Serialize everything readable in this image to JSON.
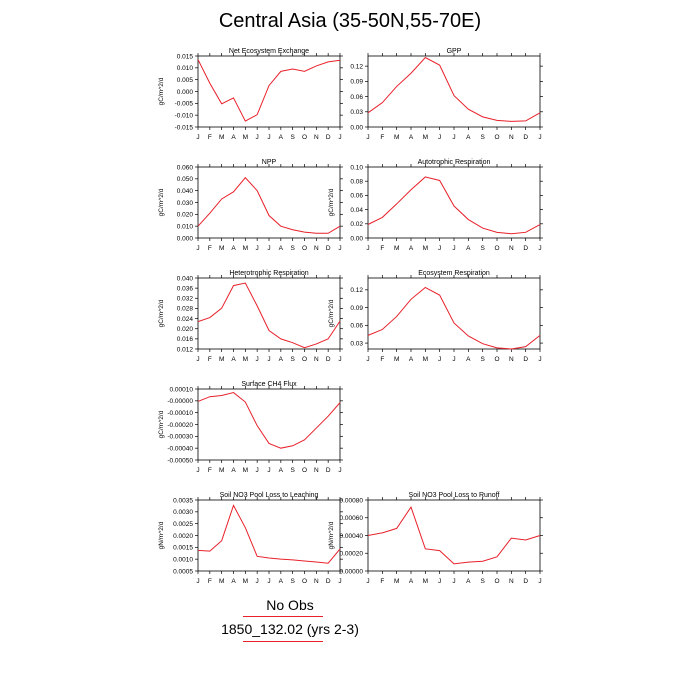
{
  "title": "Central Asia (35-50N,55-70E)",
  "month_labels": [
    "J",
    "F",
    "M",
    "A",
    "M",
    "J",
    "J",
    "A",
    "S",
    "O",
    "N",
    "D",
    "J"
  ],
  "legend": {
    "label1": "No Obs",
    "label2": "1850_132.02 (yrs 2-3)"
  },
  "colors": {
    "series": "#e8202a",
    "axis": "#000000"
  },
  "chart_data": [
    {
      "type": "line",
      "title": "Net Ecosystem Exchange",
      "ylabel": "gC/m^2/d",
      "ylim": [
        -0.015,
        0.015
      ],
      "yticks": [
        -0.015,
        -0.01,
        -0.005,
        0.0,
        0.005,
        0.01,
        0.015
      ],
      "ytick_labels": [
        "-0.015",
        "-0.010",
        "-0.005",
        "0.000",
        "0.005",
        "0.010",
        "0.015"
      ],
      "values": [
        0.0135,
        0.0035,
        -0.0052,
        -0.0027,
        -0.0125,
        -0.0098,
        0.0025,
        0.0085,
        0.0095,
        0.0085,
        0.0108,
        0.0125,
        0.0132
      ]
    },
    {
      "type": "line",
      "title": "GPP",
      "ylabel": "",
      "ylim": [
        0.0,
        0.14
      ],
      "yticks": [
        0.0,
        0.03,
        0.06,
        0.09,
        0.12
      ],
      "ytick_labels": [
        "0.00",
        "0.03",
        "0.06",
        "0.09",
        "0.12"
      ],
      "values": [
        0.028,
        0.048,
        0.08,
        0.106,
        0.137,
        0.122,
        0.062,
        0.035,
        0.02,
        0.013,
        0.011,
        0.012,
        0.028
      ]
    },
    {
      "type": "line",
      "title": "NPP",
      "ylabel": "gC/m^2/d",
      "ylim": [
        0.0,
        0.06
      ],
      "yticks": [
        0.0,
        0.01,
        0.02,
        0.03,
        0.04,
        0.05,
        0.06
      ],
      "ytick_labels": [
        "0.000",
        "0.010",
        "0.020",
        "0.030",
        "0.040",
        "0.050",
        "0.060"
      ],
      "values": [
        0.01,
        0.021,
        0.033,
        0.039,
        0.051,
        0.04,
        0.019,
        0.01,
        0.007,
        0.005,
        0.004,
        0.004,
        0.01
      ]
    },
    {
      "type": "line",
      "title": "Autotrophic Respiration",
      "ylabel": "gC/m^2/d",
      "ylim": [
        0.0,
        0.1
      ],
      "yticks": [
        0.0,
        0.02,
        0.04,
        0.06,
        0.08,
        0.1
      ],
      "ytick_labels": [
        "0.00",
        "0.02",
        "0.04",
        "0.06",
        "0.08",
        "0.10"
      ],
      "values": [
        0.019,
        0.029,
        0.048,
        0.068,
        0.086,
        0.081,
        0.045,
        0.026,
        0.014,
        0.008,
        0.006,
        0.008,
        0.019
      ]
    },
    {
      "type": "line",
      "title": "Heterotrophic Respiration",
      "ylabel": "gC/m^2/d",
      "ylim": [
        0.012,
        0.04
      ],
      "yticks": [
        0.012,
        0.016,
        0.02,
        0.024,
        0.028,
        0.032,
        0.036,
        0.04
      ],
      "ytick_labels": [
        "0.012",
        "0.016",
        "0.020",
        "0.024",
        "0.028",
        "0.032",
        "0.036",
        "0.040"
      ],
      "values": [
        0.0228,
        0.0244,
        0.0281,
        0.037,
        0.038,
        0.029,
        0.0193,
        0.016,
        0.0145,
        0.0125,
        0.014,
        0.016,
        0.023
      ]
    },
    {
      "type": "line",
      "title": "Ecosystem Respiration",
      "ylabel": "gC/m^2/d",
      "ylim": [
        0.02,
        0.14
      ],
      "yticks": [
        0.03,
        0.06,
        0.09,
        0.12
      ],
      "ytick_labels": [
        "0.03",
        "0.06",
        "0.09",
        "0.12"
      ],
      "values": [
        0.043,
        0.053,
        0.075,
        0.104,
        0.124,
        0.111,
        0.064,
        0.042,
        0.029,
        0.022,
        0.02,
        0.024,
        0.043
      ]
    },
    {
      "type": "line",
      "title": "Surface CH4 Flux",
      "ylabel": "gC/m^2/d",
      "ylim": [
        -0.0005,
        0.0001
      ],
      "yticks": [
        -0.0005,
        -0.0004,
        -0.0003,
        -0.0002,
        -0.0001,
        0.0,
        0.0001
      ],
      "ytick_labels": [
        "-0.00050",
        "-0.00040",
        "-0.00030",
        "-0.00020",
        "-0.00010",
        "-0.00000",
        "0.00010"
      ],
      "values": [
        -5e-06,
        3.5e-05,
        4.5e-05,
        7e-05,
        -1e-05,
        -0.00021,
        -0.00036,
        -0.0004,
        -0.00038,
        -0.00033,
        -0.00023,
        -0.00013,
        -1.5e-05
      ]
    },
    {
      "type": "line",
      "title": "Soil NO3 Pool Loss to Leaching",
      "ylabel": "gN/m^2/d",
      "ylim": [
        0.0005,
        0.0035
      ],
      "yticks": [
        0.0005,
        0.001,
        0.0015,
        0.002,
        0.0025,
        0.003,
        0.0035
      ],
      "ytick_labels": [
        "0.0005",
        "0.0010",
        "0.0015",
        "0.0020",
        "0.0025",
        "0.0030",
        "0.0035"
      ],
      "values": [
        0.00137,
        0.00134,
        0.00178,
        0.00327,
        0.00233,
        0.00112,
        0.00105,
        0.001,
        0.00097,
        0.00092,
        0.00088,
        0.00083,
        0.00143
      ]
    },
    {
      "type": "line",
      "title": "Soil NO3 Pool Loss to Runoff",
      "ylabel": "gN/m^2/d",
      "ylim": [
        0.0,
        0.0008
      ],
      "yticks": [
        0.0,
        0.0002,
        0.0004,
        0.0006,
        0.0008
      ],
      "ytick_labels": [
        "0.00000",
        "0.00020",
        "0.00040",
        "0.00060",
        "0.00080"
      ],
      "values": [
        0.0004,
        0.00043,
        0.00048,
        0.00072,
        0.00025,
        0.00023,
        8e-05,
        0.0001,
        0.00011,
        0.00016,
        0.00037,
        0.00035,
        0.0004
      ]
    }
  ]
}
